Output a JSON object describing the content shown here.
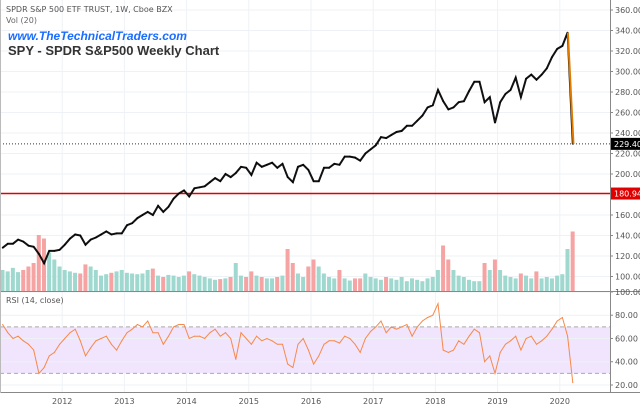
{
  "header": {
    "symbol_line": "SPDR S&P 500 ETF TRUST, 1W, Cboe BZX",
    "volume_label": "Vol (20)",
    "website": "www.TheTechnicalTraders.com",
    "title": "SPY - SPDR S&P500 Weekly Chart"
  },
  "chart_data": [
    {
      "type": "line",
      "panel": "price",
      "title": "SPY - SPDR S&P500 Weekly Chart",
      "x_start": "2011-01",
      "x_step": "month",
      "xlim": [
        2011.0,
        2020.85
      ],
      "ylim": [
        90,
        365
      ],
      "y_ticks": [
        100,
        120,
        140,
        160,
        200,
        220,
        240,
        260,
        280,
        300,
        320,
        340,
        360
      ],
      "y_tick_labels": [
        "100.00",
        "120.00",
        "140.00",
        "160.00",
        "200.00",
        "220.00",
        "240.00",
        "260.00",
        "280.00",
        "300.00",
        "320.00",
        "340.00",
        "360.00"
      ],
      "x_ticks": [
        2012,
        2013,
        2014,
        2015,
        2016,
        2017,
        2018,
        2019,
        2020
      ],
      "x_tick_labels": [
        "2012",
        "2013",
        "2014",
        "2015",
        "2016",
        "2017",
        "2018",
        "2019",
        "2020"
      ],
      "grid": true,
      "values": [
        128,
        132,
        132,
        136,
        134,
        130,
        129,
        122,
        113,
        125,
        125,
        126,
        131,
        137,
        141,
        140,
        131,
        136,
        138,
        141,
        144,
        141,
        142,
        142,
        150,
        152,
        157,
        160,
        163,
        160,
        169,
        163,
        168,
        176,
        181,
        184,
        178,
        186,
        187,
        188,
        192,
        196,
        193,
        200,
        197,
        201,
        207,
        206,
        199,
        211,
        207,
        209,
        211,
        206,
        210,
        197,
        192,
        207,
        209,
        204,
        193,
        193,
        206,
        206,
        210,
        209,
        217,
        217,
        216,
        213,
        220,
        224,
        228,
        236,
        235,
        238,
        241,
        242,
        247,
        247,
        252,
        257,
        265,
        267,
        282,
        271,
        263,
        265,
        270,
        271,
        281,
        290,
        290,
        270,
        275,
        250,
        270,
        278,
        282,
        294,
        275,
        293,
        297,
        292,
        297,
        303,
        314,
        322,
        325,
        338,
        229.4
      ],
      "current_price": {
        "value": 229.4,
        "label": "229.40",
        "color": "#000000"
      },
      "support_line": {
        "value": 180.94,
        "label": "180.94",
        "color": "#e00000"
      },
      "trend_line": {
        "from": [
          2020.13,
          338
        ],
        "to": [
          2020.22,
          229.4
        ],
        "color": "#e07b00"
      },
      "volume": {
        "label": "Vol (20)",
        "up_color": "#9fd8cf",
        "down_color": "#f5a3a3",
        "values": [
          30,
          28,
          33,
          27,
          30,
          35,
          40,
          80,
          75,
          55,
          45,
          35,
          30,
          28,
          26,
          25,
          38,
          35,
          30,
          22,
          24,
          26,
          28,
          30,
          26,
          25,
          24,
          25,
          30,
          32,
          22,
          20,
          23,
          22,
          20,
          22,
          28,
          24,
          22,
          20,
          18,
          16,
          17,
          18,
          20,
          40,
          22,
          20,
          28,
          22,
          20,
          18,
          18,
          20,
          22,
          60,
          40,
          25,
          20,
          35,
          45,
          35,
          25,
          20,
          18,
          30,
          18,
          15,
          18,
          18,
          25,
          20,
          18,
          16,
          20,
          18,
          16,
          20,
          14,
          18,
          16,
          14,
          18,
          20,
          30,
          65,
          45,
          30,
          22,
          20,
          16,
          14,
          14,
          40,
          30,
          45,
          30,
          22,
          20,
          18,
          25,
          22,
          18,
          28,
          18,
          20,
          18,
          22,
          24,
          60,
          85
        ]
      }
    },
    {
      "type": "line",
      "panel": "rsi",
      "title": "RSI (14, close)",
      "color": "#f7894a",
      "band": {
        "lower": 30,
        "upper": 70,
        "fill": "#f1e4fd"
      },
      "ylim": [
        15,
        100
      ],
      "y_ticks": [
        20,
        40,
        60,
        80,
        100
      ],
      "y_tick_labels": [
        "20.00",
        "40.00",
        "60.00",
        "80.00",
        "100.00"
      ],
      "values": [
        72,
        65,
        60,
        62,
        58,
        55,
        50,
        30,
        35,
        45,
        48,
        55,
        60,
        65,
        68,
        58,
        45,
        52,
        58,
        60,
        62,
        55,
        50,
        58,
        65,
        68,
        72,
        70,
        75,
        65,
        65,
        55,
        62,
        70,
        72,
        72,
        60,
        62,
        62,
        60,
        65,
        68,
        62,
        65,
        60,
        42,
        65,
        60,
        55,
        62,
        58,
        60,
        58,
        55,
        55,
        38,
        35,
        55,
        60,
        50,
        38,
        45,
        55,
        58,
        58,
        56,
        62,
        60,
        55,
        48,
        60,
        66,
        70,
        75,
        65,
        70,
        68,
        70,
        72,
        62,
        70,
        75,
        78,
        80,
        90,
        50,
        48,
        50,
        58,
        55,
        62,
        68,
        65,
        40,
        45,
        30,
        48,
        55,
        58,
        62,
        50,
        60,
        62,
        55,
        58,
        62,
        68,
        75,
        78,
        62,
        22
      ]
    }
  ]
}
